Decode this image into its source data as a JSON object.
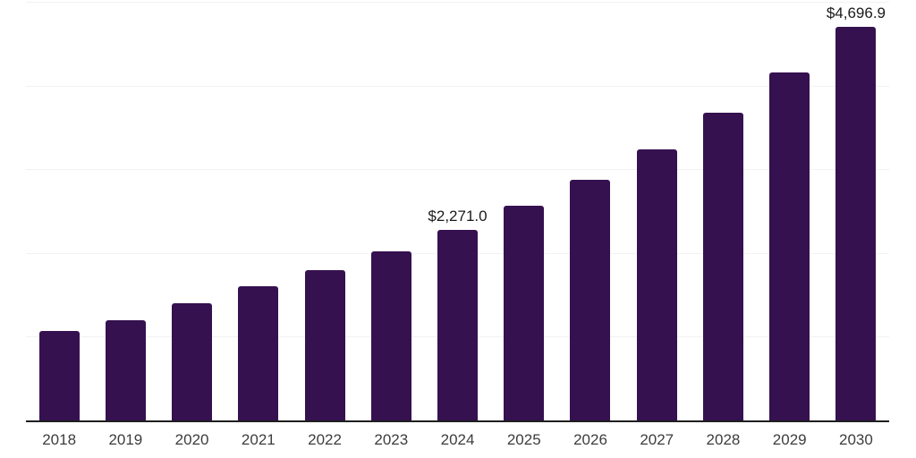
{
  "chart_data": {
    "type": "bar",
    "title": "",
    "xlabel": "",
    "ylabel": "",
    "categories": [
      "2018",
      "2019",
      "2020",
      "2021",
      "2022",
      "2023",
      "2024",
      "2025",
      "2026",
      "2027",
      "2028",
      "2029",
      "2030"
    ],
    "values": [
      1073,
      1197,
      1396,
      1606,
      1793,
      2017,
      2271.0,
      2565,
      2869,
      3242,
      3672,
      4155,
      4696.9
    ],
    "point_labels": {
      "2024": "$2,271.0",
      "2030": "$4,696.9"
    },
    "ylim": [
      0,
      5000
    ],
    "gridline_step": 1000,
    "grid_on": true,
    "y_tick_labels_shown": false,
    "legend_position": "none",
    "colors": {
      "bar": "#351150",
      "gridline": "#f2f2f2",
      "axis_line": "#1f1f1f",
      "x_tick_label": "#3d3d3d",
      "value_label": "#1a1a1a",
      "background": "#ffffff"
    }
  }
}
